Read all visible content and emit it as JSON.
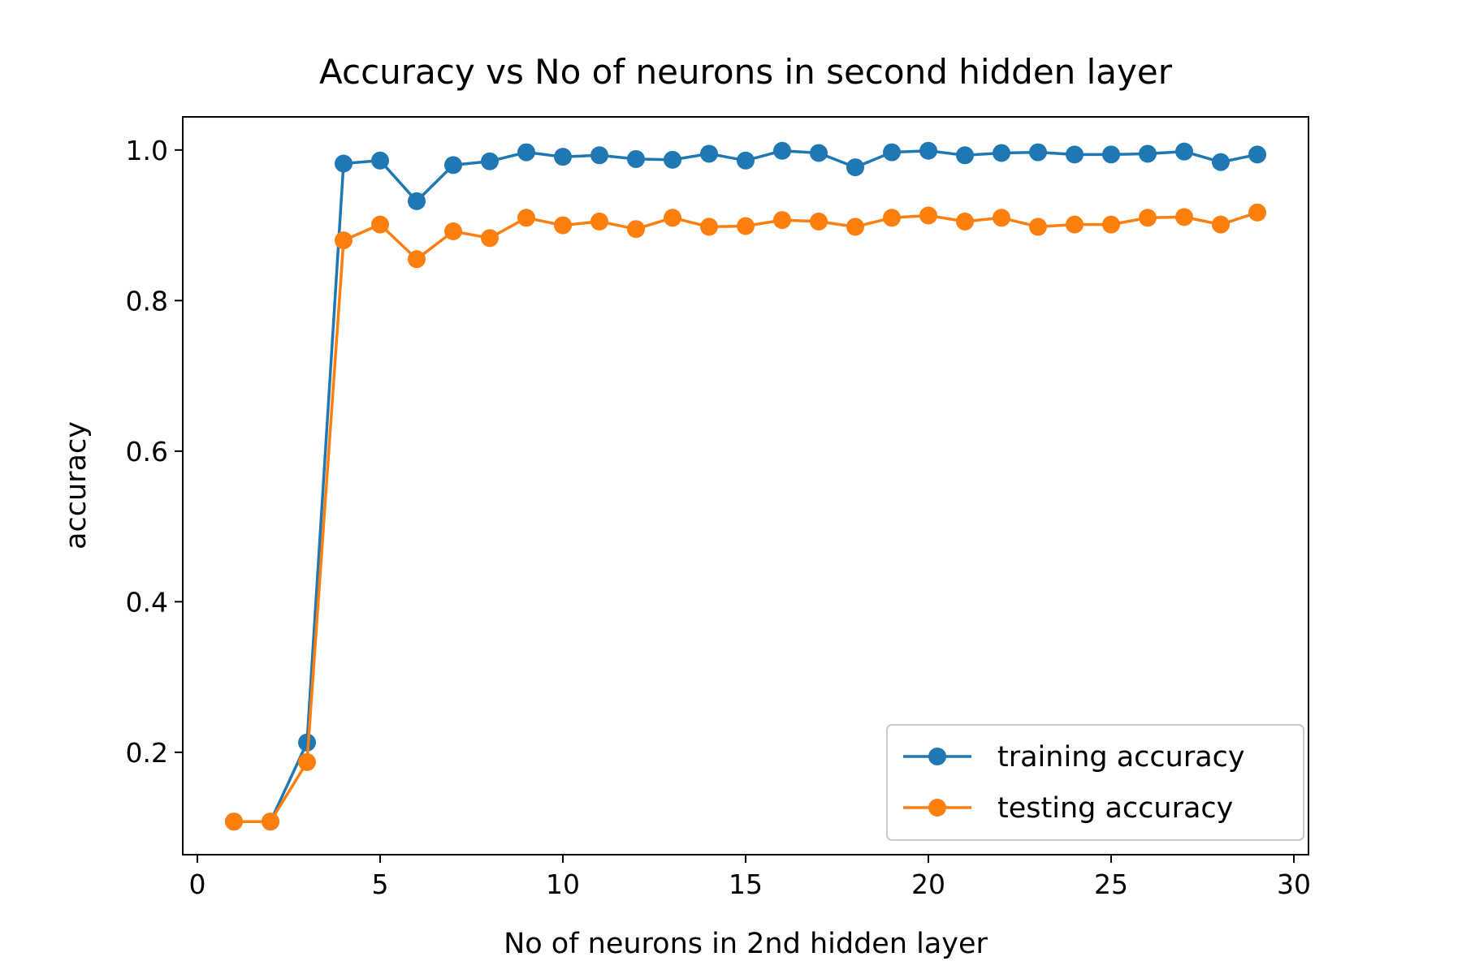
{
  "chart_data": {
    "type": "line",
    "title": "Accuracy vs No of neurons in second hidden layer",
    "xlabel": "No of neurons in 2nd hidden layer",
    "ylabel": "accuracy",
    "xlim": [
      -0.4,
      30.4
    ],
    "ylim": [
      0.064,
      1.044
    ],
    "xticks": [
      0,
      5,
      10,
      15,
      20,
      25,
      30
    ],
    "xtick_labels": [
      "0",
      "5",
      "10",
      "15",
      "20",
      "25",
      "30"
    ],
    "yticks": [
      0.2,
      0.4,
      0.6,
      0.8,
      1.0
    ],
    "ytick_labels": [
      "0.2",
      "0.4",
      "0.6",
      "0.8",
      "1.0"
    ],
    "grid": false,
    "legend_position": "lower-right",
    "x": [
      1,
      2,
      3,
      4,
      5,
      6,
      7,
      8,
      9,
      10,
      11,
      12,
      13,
      14,
      15,
      16,
      17,
      18,
      19,
      20,
      21,
      22,
      23,
      24,
      25,
      26,
      27,
      28,
      29
    ],
    "series": [
      {
        "name": "training accuracy",
        "color": "#1f77b4",
        "values": [
          0.108,
          0.108,
          0.213,
          0.982,
          0.986,
          0.932,
          0.98,
          0.985,
          0.997,
          0.991,
          0.993,
          0.988,
          0.987,
          0.995,
          0.986,
          0.999,
          0.996,
          0.977,
          0.997,
          0.999,
          0.993,
          0.996,
          0.997,
          0.994,
          0.994,
          0.995,
          0.998,
          0.984,
          0.994
        ]
      },
      {
        "name": "testing accuracy",
        "color": "#ff7f0e",
        "values": [
          0.108,
          0.108,
          0.187,
          0.88,
          0.901,
          0.855,
          0.892,
          0.883,
          0.91,
          0.9,
          0.905,
          0.895,
          0.91,
          0.898,
          0.899,
          0.907,
          0.905,
          0.898,
          0.91,
          0.913,
          0.905,
          0.91,
          0.898,
          0.901,
          0.901,
          0.91,
          0.911,
          0.901,
          0.917
        ]
      }
    ]
  }
}
